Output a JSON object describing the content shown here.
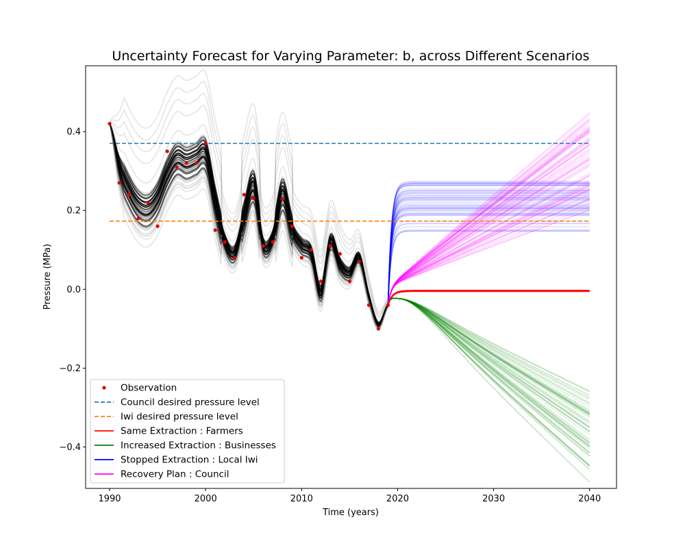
{
  "chart_data": {
    "type": "line",
    "title": "Uncertainty Forecast for Varying Parameter:  b, across Different Scenarios",
    "xlabel": "Time (years)",
    "ylabel": "Pressure (MPa)",
    "xlim": [
      1987.5,
      2042.8
    ],
    "ylim": [
      -0.505,
      0.567
    ],
    "xticks": [
      1990,
      2000,
      2010,
      2020,
      2030,
      2040
    ],
    "yticks": [
      -0.4,
      -0.2,
      0.0,
      0.2,
      0.4
    ],
    "ytick_labels": [
      "−0.4",
      "−0.2",
      "0.0",
      "0.2",
      "0.4"
    ],
    "grid": false,
    "legend_position": "lower-left",
    "colors": {
      "observation": "#e00000",
      "council": "#1f77b4",
      "iwi": "#ff7f0e",
      "same": "#ff0000",
      "increased": "#008000",
      "stopped": "#0000ff",
      "recovery": "#ff00ff",
      "hindcast": "#000000"
    },
    "observations": {
      "name": "Observation",
      "x": [
        1990,
        1991,
        1992,
        1993,
        1994,
        1995,
        1996,
        1997,
        1998,
        1999,
        2000,
        2001,
        2002,
        2003,
        2004,
        2005,
        2006,
        2007,
        2008,
        2009,
        2010,
        2011,
        2012,
        2013,
        2014,
        2015,
        2016,
        2017,
        2018,
        2019
      ],
      "y": [
        0.42,
        0.27,
        0.24,
        0.18,
        0.22,
        0.16,
        0.35,
        0.31,
        0.32,
        0.32,
        0.37,
        0.15,
        0.12,
        0.08,
        0.24,
        0.23,
        0.11,
        0.12,
        0.23,
        0.16,
        0.08,
        0.1,
        0.02,
        0.11,
        0.09,
        0.02,
        0.07,
        -0.04,
        -0.1,
        -0.04
      ]
    },
    "hindcast_center": {
      "x": [
        1990,
        1991,
        1992,
        1993,
        1994,
        1995,
        1996,
        1997,
        1998,
        1999,
        2000,
        2001,
        2002,
        2003,
        2004,
        2005,
        2006,
        2007,
        2008,
        2009,
        2010,
        2011,
        2012,
        2013,
        2014,
        2015,
        2016,
        2017,
        2018,
        2019
      ],
      "y": [
        0.42,
        0.31,
        0.25,
        0.21,
        0.2,
        0.23,
        0.29,
        0.33,
        0.32,
        0.33,
        0.34,
        0.22,
        0.12,
        0.09,
        0.18,
        0.26,
        0.11,
        0.13,
        0.24,
        0.15,
        0.11,
        0.09,
        -0.01,
        0.12,
        0.06,
        0.04,
        0.08,
        -0.02,
        -0.09,
        -0.04
      ]
    },
    "series": [
      {
        "name": "Council desired pressure level",
        "style": "dashed",
        "x": [
          1990,
          2040
        ],
        "values": [
          0.37,
          0.37
        ]
      },
      {
        "name": "Iwi desired pressure level",
        "style": "dashed",
        "x": [
          1990,
          2040
        ],
        "values": [
          0.173,
          0.173
        ]
      },
      {
        "name": "Same Extraction : Farmers",
        "style": "solid",
        "x": [
          2019,
          2020,
          2021,
          2025,
          2040
        ],
        "values": [
          -0.04,
          -0.012,
          -0.006,
          -0.005,
          -0.005
        ]
      },
      {
        "name": "Increased Extraction : Businesses",
        "style": "solid",
        "x": [
          2019,
          2020,
          2025,
          2030,
          2040
        ],
        "values": [
          -0.04,
          -0.025,
          -0.06,
          -0.13,
          -0.3
        ],
        "end_range": [
          -0.46,
          -0.23
        ]
      },
      {
        "name": "Stopped Extraction : Local Iwi",
        "style": "solid",
        "x": [
          2019,
          2019.5,
          2020,
          2021,
          2040
        ],
        "values": [
          -0.04,
          0.1,
          0.16,
          0.18,
          0.18
        ],
        "end_range": [
          0.14,
          0.275
        ]
      },
      {
        "name": "Recovery Plan : Council",
        "style": "solid",
        "x": [
          2019,
          2020,
          2025,
          2030,
          2040
        ],
        "values": [
          -0.04,
          0.01,
          0.07,
          0.14,
          0.29
        ],
        "end_range": [
          0.17,
          0.44
        ]
      }
    ]
  }
}
